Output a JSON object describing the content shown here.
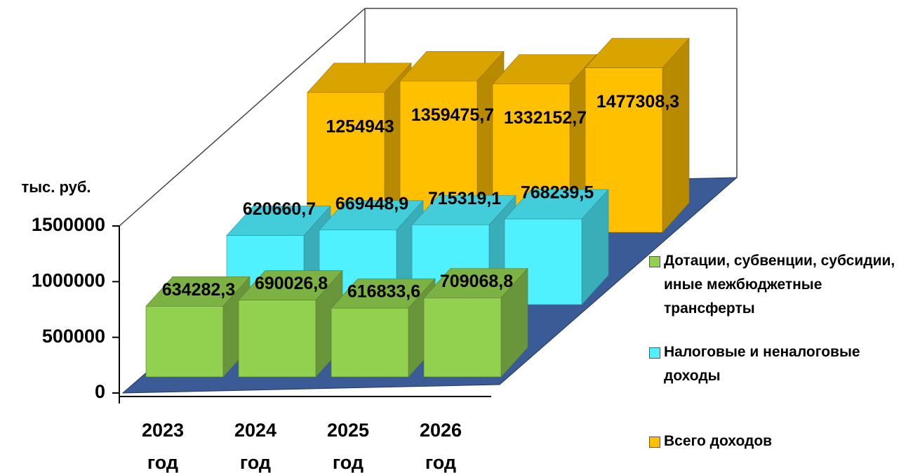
{
  "chart_data": {
    "type": "bar3d",
    "y_label": "тыс. руб.",
    "categories": [
      "2023 год",
      "2024 год",
      "2025 год",
      "2026 год"
    ],
    "series": [
      {
        "name": "Дотации, субвенции, субсидии, иные межбюджетные трансферты",
        "color": "#92d050",
        "values": [
          634282.3,
          690026.8,
          616833.6,
          709068.8
        ],
        "value_labels": [
          "634282,3",
          "690026,8",
          "616833,6",
          "709068,8"
        ]
      },
      {
        "name": "Налоговые и неналоговые доходы",
        "color": "#4ff0ff",
        "values": [
          620660.7,
          669448.9,
          715319.1,
          768239.5
        ],
        "value_labels": [
          "620660,7",
          "669448,9",
          "715319,1",
          "768239,5"
        ]
      },
      {
        "name": "Всего доходов",
        "color": "#ffc000",
        "values": [
          1254943,
          1359475.7,
          1332152.7,
          1477308.3
        ],
        "value_labels": [
          "1254943",
          "1359475,7",
          "1332152,7",
          "1477308,3"
        ]
      }
    ],
    "ylim": [
      0,
      1500000
    ],
    "yticks": [
      0,
      500000,
      1000000,
      1500000
    ]
  }
}
